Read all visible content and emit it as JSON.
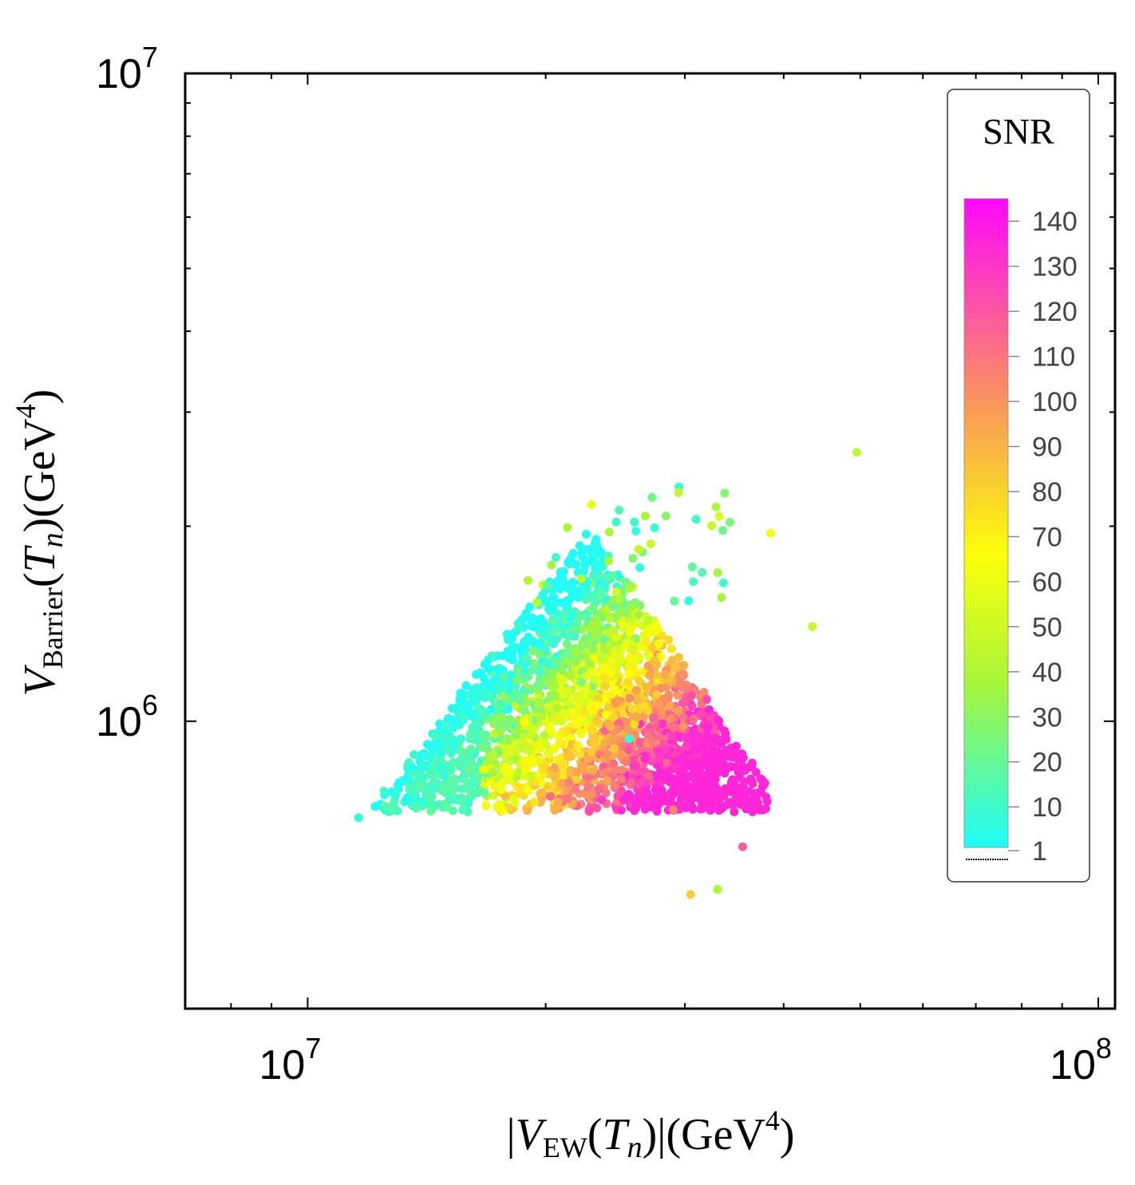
{
  "chart_data": {
    "type": "scatter",
    "title": "",
    "xlabel": {
      "prefix": "|",
      "var": "V",
      "sub": "EW",
      "mid": "(",
      "tvar": "T",
      "tsub": "n",
      "close": ")|(GeV",
      "exp": "4",
      "end": ")"
    },
    "ylabel": {
      "var": "V",
      "sub": "Barrier",
      "mid": "(",
      "tvar": "T",
      "tsub": "n",
      "close": ")(GeV",
      "exp": "4",
      "end": ")"
    },
    "xscale": "log",
    "yscale": "log",
    "xlim": [
      7000000.0,
      105000000.0
    ],
    "ylim": [
      360000.0,
      10000000.0
    ],
    "x_ticks": [
      {
        "value": 10000000.0,
        "base": "10",
        "exp": "7"
      },
      {
        "value": 100000000.0,
        "base": "10",
        "exp": "8"
      }
    ],
    "y_ticks": [
      {
        "value": 1000000.0,
        "base": "10",
        "exp": "6"
      },
      {
        "value": 10000000.0,
        "base": "10",
        "exp": "7"
      }
    ],
    "colorbar": {
      "title": "SNR",
      "min": 1,
      "max": 145,
      "tick_labels": [
        "1",
        "10",
        "20",
        "30",
        "40",
        "50",
        "60",
        "70",
        "80",
        "90",
        "100",
        "110",
        "120",
        "130",
        "140"
      ],
      "tick_values": [
        1,
        10,
        20,
        30,
        40,
        50,
        60,
        70,
        80,
        90,
        100,
        110,
        120,
        130,
        140
      ],
      "colors": [
        "#1efcfa",
        "#a6f53c",
        "#fbff09",
        "#fa8f62",
        "#ff08fb"
      ]
    },
    "n_points": 2500,
    "points_sample": [
      {
        "x": 11600000.0,
        "y": 710000.0,
        "snr": 8
      },
      {
        "x": 12500000.0,
        "y": 780000.0,
        "snr": 10
      },
      {
        "x": 14500000.0,
        "y": 950000.0,
        "snr": 12
      },
      {
        "x": 18500000.0,
        "y": 1400000.0,
        "snr": 10
      },
      {
        "x": 24000000.0,
        "y": 1800000.0,
        "snr": 12
      },
      {
        "x": 29500000.0,
        "y": 2300000.0,
        "snr": 8
      },
      {
        "x": 31000000.0,
        "y": 2050000.0,
        "snr": 10
      },
      {
        "x": 49500000.0,
        "y": 2600000.0,
        "snr": 45
      },
      {
        "x": 38500000.0,
        "y": 1950000.0,
        "snr": 68
      },
      {
        "x": 43500000.0,
        "y": 1400000.0,
        "snr": 48
      },
      {
        "x": 29000000.0,
        "y": 730000.0,
        "snr": 105
      },
      {
        "x": 30500000.0,
        "y": 540000.0,
        "snr": 82
      },
      {
        "x": 35500000.0,
        "y": 640000.0,
        "snr": 118
      },
      {
        "x": 33000000.0,
        "y": 550000.0,
        "snr": 40
      },
      {
        "x": 25500000.0,
        "y": 940000.0,
        "snr": 8
      }
    ]
  }
}
